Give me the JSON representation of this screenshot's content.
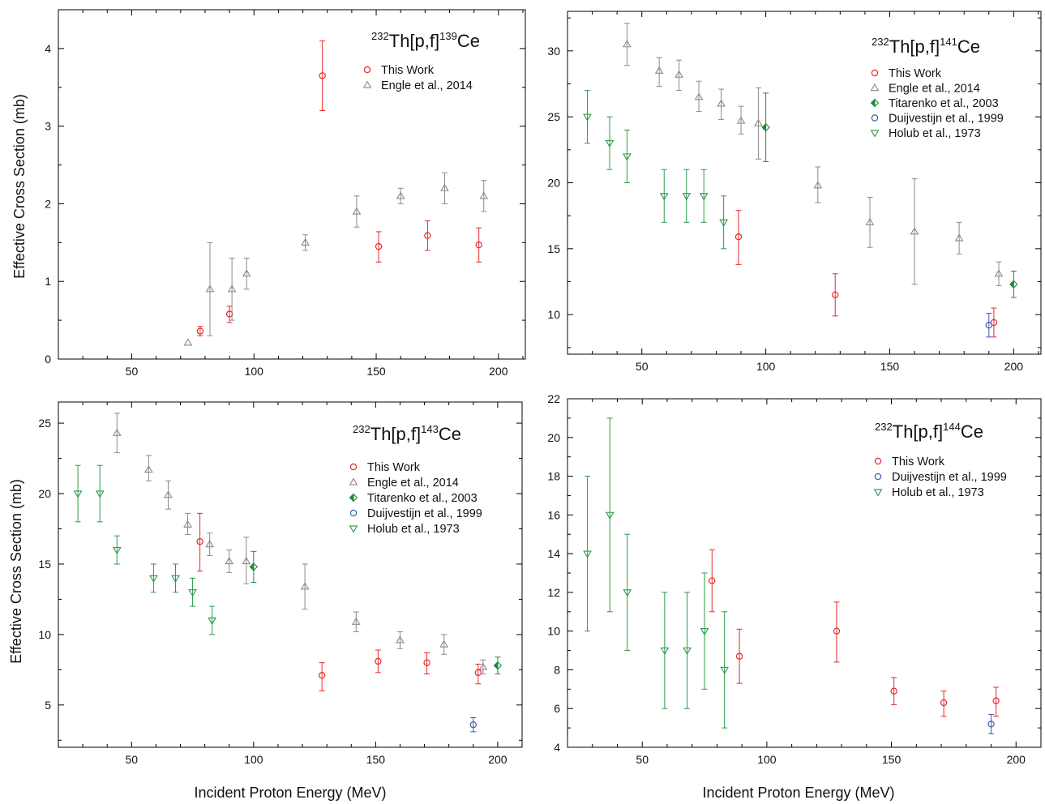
{
  "colors": {
    "this_work": "#e8282b",
    "engle": "#8a8a8a",
    "titarenko": "#1f8a3b",
    "duijvestijn": "#3a5fad",
    "holub": "#2a9a47"
  },
  "figure": {
    "xlabel": "Incident Proton Energy (MeV)",
    "ylabel": "Effective Cross Section (mb)"
  },
  "chart_data": [
    {
      "type": "scatter",
      "title": {
        "pre": "232",
        "main": "Th[p,f]",
        "mid": "139",
        "post": "Ce"
      },
      "xlabel": "Incident Proton Energy (MeV)",
      "ylabel": "Effective Cross Section (mb)",
      "xlim": [
        20,
        211
      ],
      "ylim": [
        0,
        4.5
      ],
      "xticks": [
        50,
        100,
        150,
        200
      ],
      "yticks": [
        0,
        1,
        2,
        3,
        4
      ],
      "legend_position": "top-right",
      "series": [
        {
          "name": "This Work",
          "marker": "circle",
          "color": "#e8282b",
          "points": [
            {
              "x": 78,
              "y": 0.36,
              "lo": 0.3,
              "hi": 0.42
            },
            {
              "x": 90,
              "y": 0.58,
              "lo": 0.47,
              "hi": 0.68
            },
            {
              "x": 128,
              "y": 3.65,
              "lo": 3.2,
              "hi": 4.1
            },
            {
              "x": 151,
              "y": 1.45,
              "lo": 1.25,
              "hi": 1.64
            },
            {
              "x": 171,
              "y": 1.59,
              "lo": 1.4,
              "hi": 1.78
            },
            {
              "x": 192,
              "y": 1.47,
              "lo": 1.25,
              "hi": 1.69
            }
          ]
        },
        {
          "name": "Engle et al., 2014",
          "marker": "triangle-up",
          "color": "#8a8a8a",
          "points": [
            {
              "x": 73,
              "y": 0.21,
              "lo": 0.21,
              "hi": 0.21
            },
            {
              "x": 82,
              "y": 0.9,
              "lo": 0.3,
              "hi": 1.5
            },
            {
              "x": 91,
              "y": 0.9,
              "lo": 0.5,
              "hi": 1.3
            },
            {
              "x": 97,
              "y": 1.1,
              "lo": 0.9,
              "hi": 1.3
            },
            {
              "x": 121,
              "y": 1.5,
              "lo": 1.4,
              "hi": 1.6
            },
            {
              "x": 142,
              "y": 1.9,
              "lo": 1.7,
              "hi": 2.1
            },
            {
              "x": 160,
              "y": 2.1,
              "lo": 2.0,
              "hi": 2.2
            },
            {
              "x": 178,
              "y": 2.2,
              "lo": 2.0,
              "hi": 2.4
            },
            {
              "x": 194,
              "y": 2.1,
              "lo": 1.9,
              "hi": 2.3
            }
          ]
        }
      ]
    },
    {
      "type": "scatter",
      "title": {
        "pre": "232",
        "main": "Th[p,f]",
        "mid": "141",
        "post": "Ce"
      },
      "xlabel": "Incident Proton Energy (MeV)",
      "ylabel": "Effective Cross Section (mb)",
      "xlim": [
        20,
        211
      ],
      "ylim": [
        7,
        33
      ],
      "xticks": [
        50,
        100,
        150,
        200
      ],
      "yticks": [
        10,
        15,
        20,
        25,
        30
      ],
      "legend_position": "top-right",
      "series": [
        {
          "name": "This Work",
          "marker": "circle",
          "color": "#e8282b",
          "points": [
            {
              "x": 89,
              "y": 15.9,
              "lo": 13.8,
              "hi": 17.9
            },
            {
              "x": 128,
              "y": 11.5,
              "lo": 9.9,
              "hi": 13.1
            },
            {
              "x": 192,
              "y": 9.4,
              "lo": 8.3,
              "hi": 10.5
            }
          ]
        },
        {
          "name": "Engle et al., 2014",
          "marker": "triangle-up",
          "color": "#8a8a8a",
          "points": [
            {
              "x": 44,
              "y": 30.5,
              "lo": 28.9,
              "hi": 32.1
            },
            {
              "x": 57,
              "y": 28.5,
              "lo": 27.3,
              "hi": 29.5
            },
            {
              "x": 65,
              "y": 28.2,
              "lo": 27.0,
              "hi": 29.3
            },
            {
              "x": 73,
              "y": 26.5,
              "lo": 25.4,
              "hi": 27.7
            },
            {
              "x": 82,
              "y": 26.0,
              "lo": 24.8,
              "hi": 27.1
            },
            {
              "x": 90,
              "y": 24.7,
              "lo": 23.7,
              "hi": 25.8
            },
            {
              "x": 97,
              "y": 24.5,
              "lo": 21.8,
              "hi": 27.2
            },
            {
              "x": 121,
              "y": 19.8,
              "lo": 18.5,
              "hi": 21.2
            },
            {
              "x": 142,
              "y": 17.0,
              "lo": 15.1,
              "hi": 18.9
            },
            {
              "x": 160,
              "y": 16.3,
              "lo": 12.3,
              "hi": 20.3
            },
            {
              "x": 178,
              "y": 15.8,
              "lo": 14.6,
              "hi": 17.0
            },
            {
              "x": 194,
              "y": 13.1,
              "lo": 12.2,
              "hi": 14.0
            }
          ]
        },
        {
          "name": "Titarenko et al., 2003",
          "marker": "diamond-half",
          "color": "#1f8a3b",
          "points": [
            {
              "x": 100,
              "y": 24.2,
              "lo": 21.6,
              "hi": 26.8
            },
            {
              "x": 200,
              "y": 12.3,
              "lo": 11.3,
              "hi": 13.3
            }
          ]
        },
        {
          "name": "Duijvestijn et al., 1999",
          "marker": "circle",
          "color": "#3a5fad",
          "points": [
            {
              "x": 190,
              "y": 9.2,
              "lo": 8.3,
              "hi": 10.1
            }
          ]
        },
        {
          "name": "Holub et al., 1973",
          "marker": "triangle-down",
          "color": "#2a9a47",
          "points": [
            {
              "x": 28,
              "y": 25.0,
              "lo": 23.0,
              "hi": 27.0
            },
            {
              "x": 37,
              "y": 23.0,
              "lo": 21.0,
              "hi": 25.0
            },
            {
              "x": 44,
              "y": 22.0,
              "lo": 20.0,
              "hi": 24.0
            },
            {
              "x": 59,
              "y": 19.0,
              "lo": 17.0,
              "hi": 21.0
            },
            {
              "x": 68,
              "y": 19.0,
              "lo": 17.0,
              "hi": 21.0
            },
            {
              "x": 75,
              "y": 19.0,
              "lo": 17.0,
              "hi": 21.0
            },
            {
              "x": 83,
              "y": 17.0,
              "lo": 15.0,
              "hi": 19.0
            }
          ]
        }
      ]
    },
    {
      "type": "scatter",
      "title": {
        "pre": "232",
        "main": "Th[p,f]",
        "mid": "143",
        "post": "Ce"
      },
      "xlabel": "Incident Proton Energy (MeV)",
      "ylabel": "Effective Cross Section (mb)",
      "xlim": [
        20,
        210
      ],
      "ylim": [
        2,
        26.5
      ],
      "xticks": [
        50,
        100,
        150,
        200
      ],
      "yticks": [
        5,
        10,
        15,
        20,
        25
      ],
      "legend_position": "top-right",
      "series": [
        {
          "name": "This Work",
          "marker": "circle",
          "color": "#e8282b",
          "points": [
            {
              "x": 78,
              "y": 16.6,
              "lo": 14.5,
              "hi": 18.6
            },
            {
              "x": 128,
              "y": 7.1,
              "lo": 6.0,
              "hi": 8.0
            },
            {
              "x": 151,
              "y": 8.1,
              "lo": 7.3,
              "hi": 8.9
            },
            {
              "x": 171,
              "y": 8.0,
              "lo": 7.2,
              "hi": 8.7
            },
            {
              "x": 192,
              "y": 7.3,
              "lo": 6.5,
              "hi": 7.9
            }
          ]
        },
        {
          "name": "Engle et al., 2014",
          "marker": "triangle-up",
          "color": "#8a8a8a",
          "points": [
            {
              "x": 44,
              "y": 24.3,
              "lo": 22.9,
              "hi": 25.7
            },
            {
              "x": 57,
              "y": 21.7,
              "lo": 20.9,
              "hi": 22.7
            },
            {
              "x": 65,
              "y": 19.9,
              "lo": 18.9,
              "hi": 20.9
            },
            {
              "x": 73,
              "y": 17.8,
              "lo": 17.1,
              "hi": 18.6
            },
            {
              "x": 82,
              "y": 16.4,
              "lo": 15.6,
              "hi": 17.2
            },
            {
              "x": 90,
              "y": 15.2,
              "lo": 14.4,
              "hi": 16.0
            },
            {
              "x": 97,
              "y": 15.2,
              "lo": 13.6,
              "hi": 16.9
            },
            {
              "x": 121,
              "y": 13.4,
              "lo": 11.8,
              "hi": 15.0
            },
            {
              "x": 142,
              "y": 10.9,
              "lo": 10.2,
              "hi": 11.6
            },
            {
              "x": 160,
              "y": 9.6,
              "lo": 9.0,
              "hi": 10.2
            },
            {
              "x": 178,
              "y": 9.3,
              "lo": 8.6,
              "hi": 10.0
            },
            {
              "x": 194,
              "y": 7.7,
              "lo": 7.2,
              "hi": 8.2
            }
          ]
        },
        {
          "name": "Titarenko et al., 2003",
          "marker": "diamond-half",
          "color": "#1f8a3b",
          "points": [
            {
              "x": 100,
              "y": 14.8,
              "lo": 13.7,
              "hi": 15.9
            },
            {
              "x": 200,
              "y": 7.8,
              "lo": 7.2,
              "hi": 8.4
            }
          ]
        },
        {
          "name": "Duijvestijn et al., 1999",
          "marker": "circle",
          "color": "#3a5fad",
          "points": [
            {
              "x": 190,
              "y": 3.6,
              "lo": 3.1,
              "hi": 4.1
            }
          ]
        },
        {
          "name": "Holub et al., 1973",
          "marker": "triangle-down",
          "color": "#2a9a47",
          "points": [
            {
              "x": 28,
              "y": 20.0,
              "lo": 18.0,
              "hi": 22.0
            },
            {
              "x": 37,
              "y": 20.0,
              "lo": 18.0,
              "hi": 22.0
            },
            {
              "x": 44,
              "y": 16.0,
              "lo": 15.0,
              "hi": 17.0
            },
            {
              "x": 59,
              "y": 14.0,
              "lo": 13.0,
              "hi": 15.0
            },
            {
              "x": 68,
              "y": 14.0,
              "lo": 13.0,
              "hi": 15.0
            },
            {
              "x": 75,
              "y": 13.0,
              "lo": 12.0,
              "hi": 14.0
            },
            {
              "x": 83,
              "y": 11.0,
              "lo": 10.0,
              "hi": 12.0
            }
          ]
        }
      ]
    },
    {
      "type": "scatter",
      "title": {
        "pre": "232",
        "main": "Th[p,f]",
        "mid": "144",
        "post": "Ce"
      },
      "xlabel": "Incident Proton Energy (MeV)",
      "ylabel": "Effective Cross Section (mb)",
      "xlim": [
        20,
        210
      ],
      "ylim": [
        4,
        22
      ],
      "xticks": [
        50,
        100,
        150,
        200
      ],
      "yticks": [
        4,
        6,
        8,
        10,
        12,
        14,
        16,
        18,
        20,
        22
      ],
      "legend_position": "top-right",
      "series": [
        {
          "name": "This Work",
          "marker": "circle",
          "color": "#e8282b",
          "points": [
            {
              "x": 78,
              "y": 12.6,
              "lo": 11.0,
              "hi": 14.2
            },
            {
              "x": 89,
              "y": 8.7,
              "lo": 7.3,
              "hi": 10.1
            },
            {
              "x": 128,
              "y": 10.0,
              "lo": 8.4,
              "hi": 11.5
            },
            {
              "x": 151,
              "y": 6.9,
              "lo": 6.2,
              "hi": 7.6
            },
            {
              "x": 171,
              "y": 6.3,
              "lo": 5.6,
              "hi": 6.9
            },
            {
              "x": 192,
              "y": 6.4,
              "lo": 5.6,
              "hi": 7.1
            }
          ]
        },
        {
          "name": "Duijvestijn et al., 1999",
          "marker": "circle",
          "color": "#3a5fad",
          "points": [
            {
              "x": 190,
              "y": 5.2,
              "lo": 4.7,
              "hi": 5.7
            }
          ]
        },
        {
          "name": "Holub et al., 1973",
          "marker": "triangle-down",
          "color": "#2a9a47",
          "points": [
            {
              "x": 28,
              "y": 14.0,
              "lo": 10.0,
              "hi": 18.0
            },
            {
              "x": 37,
              "y": 16.0,
              "lo": 11.0,
              "hi": 21.0
            },
            {
              "x": 44,
              "y": 12.0,
              "lo": 9.0,
              "hi": 15.0
            },
            {
              "x": 59,
              "y": 9.0,
              "lo": 6.0,
              "hi": 12.0
            },
            {
              "x": 68,
              "y": 9.0,
              "lo": 6.0,
              "hi": 12.0
            },
            {
              "x": 75,
              "y": 10.0,
              "lo": 7.0,
              "hi": 13.0
            },
            {
              "x": 83,
              "y": 8.0,
              "lo": 5.0,
              "hi": 11.0
            }
          ]
        }
      ]
    }
  ]
}
